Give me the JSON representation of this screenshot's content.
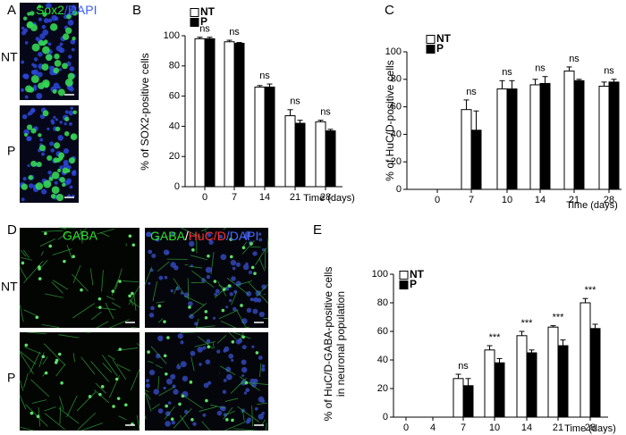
{
  "panels": {
    "A": {
      "label": "A",
      "stain": [
        "Sox2",
        "/DAPI"
      ],
      "rows": [
        "NT",
        "P"
      ]
    },
    "D": {
      "label": "D",
      "col1": "GABA",
      "col2": [
        "GABA",
        "/",
        "HuC/D",
        "/DAPI"
      ],
      "rows": [
        "NT",
        "P"
      ]
    }
  },
  "chart_data": [
    {
      "type": "bar",
      "panel_label": "B",
      "y_label": [
        "% of SOX2-positive cells"
      ],
      "x_label": "Time (days)",
      "categories": [
        "0",
        "7",
        "14",
        "21",
        "28"
      ],
      "series": [
        {
          "name": "NT",
          "color": "#ffffff",
          "values": [
            98,
            96,
            66,
            47,
            43
          ],
          "errors": [
            1,
            1,
            1,
            4,
            1
          ]
        },
        {
          "name": "P",
          "color": "#000000",
          "values": [
            98,
            95,
            66,
            42,
            37
          ],
          "errors": [
            1,
            0.5,
            2,
            2,
            1
          ]
        }
      ],
      "annotations": [
        "ns",
        "ns",
        "ns",
        "ns",
        "ns"
      ],
      "ylim": [
        0,
        100
      ],
      "yticks": [
        0,
        20,
        40,
        60,
        80,
        100
      ]
    },
    {
      "type": "bar",
      "panel_label": "C",
      "y_label": [
        "% of HuC/D-positive cells"
      ],
      "x_label": "Time (days)",
      "categories": [
        "0",
        "7",
        "10",
        "14",
        "21",
        "28"
      ],
      "series": [
        {
          "name": "NT",
          "color": "#ffffff",
          "values": [
            null,
            58,
            73,
            76,
            86,
            75
          ],
          "errors": [
            null,
            7,
            6,
            4,
            3,
            3
          ]
        },
        {
          "name": "P",
          "color": "#000000",
          "values": [
            null,
            43,
            73,
            77,
            79,
            78
          ],
          "errors": [
            null,
            14,
            6,
            5,
            1,
            2
          ]
        }
      ],
      "annotations": [
        null,
        "ns",
        "ns",
        "ns",
        "ns",
        "ns"
      ],
      "ylim": [
        0,
        100
      ],
      "yticks": [
        0,
        20,
        40,
        60,
        80,
        100
      ]
    },
    {
      "type": "bar",
      "panel_label": "E",
      "y_label": [
        "% of HuC/D-GABA-positive cells",
        "in neuronal population"
      ],
      "x_label": "Time (days)",
      "categories": [
        "0",
        "4",
        "7",
        "10",
        "14",
        "21",
        "28"
      ],
      "series": [
        {
          "name": "NT",
          "color": "#ffffff",
          "values": [
            null,
            null,
            27,
            47,
            57,
            63,
            80
          ],
          "errors": [
            null,
            null,
            3,
            3,
            3,
            1,
            3
          ]
        },
        {
          "name": "P",
          "color": "#000000",
          "values": [
            null,
            null,
            22,
            38,
            45,
            50,
            62
          ],
          "errors": [
            null,
            null,
            5,
            3,
            2,
            4,
            3
          ]
        }
      ],
      "annotations": [
        null,
        null,
        "ns",
        "***",
        "***",
        "***",
        "***"
      ],
      "ylim": [
        0,
        100
      ],
      "yticks": [
        0,
        20,
        40,
        60,
        80,
        100
      ]
    }
  ]
}
